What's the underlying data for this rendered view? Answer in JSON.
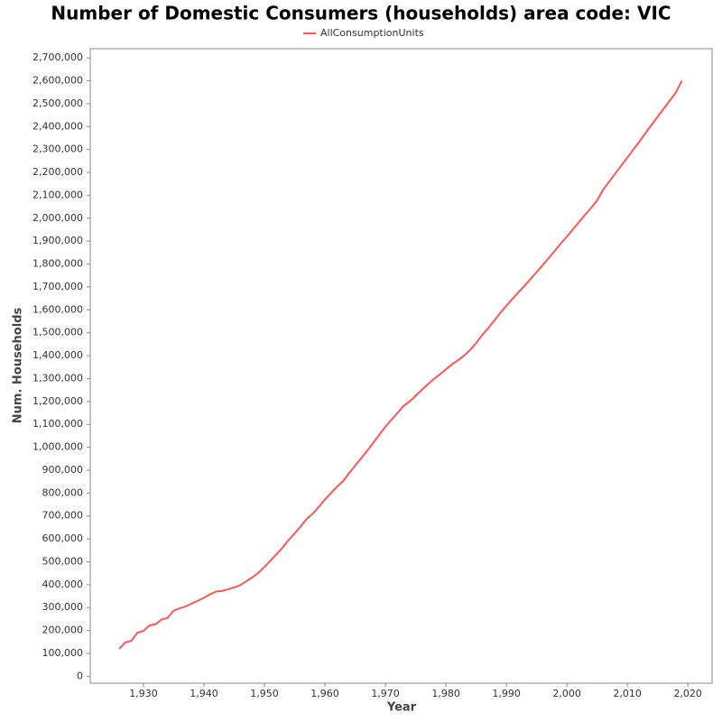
{
  "chart_data": {
    "type": "line",
    "title": "Number of Domestic Consumers (households) area code: VIC",
    "x_label": "Year",
    "y_label": "Num. Households",
    "x": [
      1926,
      1927,
      1928,
      1929,
      1930,
      1931,
      1932,
      1933,
      1934,
      1935,
      1936,
      1937,
      1938,
      1939,
      1940,
      1941,
      1942,
      1943,
      1944,
      1945,
      1946,
      1947,
      1948,
      1949,
      1950,
      1951,
      1952,
      1953,
      1954,
      1955,
      1956,
      1957,
      1958,
      1959,
      1960,
      1961,
      1962,
      1963,
      1964,
      1965,
      1966,
      1967,
      1968,
      1969,
      1970,
      1971,
      1972,
      1973,
      1974,
      1975,
      1976,
      1977,
      1978,
      1979,
      1980,
      1981,
      1982,
      1983,
      1984,
      1985,
      1986,
      1987,
      1988,
      1989,
      1990,
      1991,
      1992,
      1993,
      1994,
      1995,
      1996,
      1997,
      1998,
      1999,
      2000,
      2001,
      2002,
      2003,
      2004,
      2005,
      2006,
      2007,
      2008,
      2009,
      2010,
      2011,
      2012,
      2013,
      2014,
      2015,
      2016,
      2017,
      2018,
      2019
    ],
    "series": [
      {
        "name": "AllConsumptionUnits",
        "color": "#ff5555",
        "values": [
          120000,
          148000,
          155000,
          190000,
          198000,
          222000,
          228000,
          248000,
          255000,
          287000,
          297000,
          305000,
          318000,
          330000,
          343000,
          358000,
          370000,
          373000,
          380000,
          388000,
          398000,
          415000,
          432000,
          452000,
          478000,
          505000,
          533000,
          562000,
          595000,
          624000,
          655000,
          688000,
          710000,
          740000,
          772000,
          800000,
          828000,
          852000,
          887000,
          920000,
          952000,
          985000,
          1020000,
          1055000,
          1090000,
          1120000,
          1150000,
          1180000,
          1200000,
          1225000,
          1250000,
          1275000,
          1298000,
          1318000,
          1340000,
          1362000,
          1380000,
          1400000,
          1425000,
          1455000,
          1490000,
          1520000,
          1553000,
          1587000,
          1618000,
          1648000,
          1677000,
          1705000,
          1735000,
          1765000,
          1795000,
          1826000,
          1858000,
          1890000,
          1920000,
          1952000,
          1983000,
          2015000,
          2045000,
          2078000,
          2125000,
          2160000,
          2195000,
          2230000,
          2265000,
          2300000,
          2335000,
          2372000,
          2408000,
          2443000,
          2478000,
          2513000,
          2548000,
          2600000
        ]
      }
    ],
    "xlim": [
      1921.2,
      2024
    ],
    "xticks": [
      {
        "value": 1930,
        "label": "1,930"
      },
      {
        "value": 1940,
        "label": "1,940"
      },
      {
        "value": 1950,
        "label": "1,950"
      },
      {
        "value": 1960,
        "label": "1,960"
      },
      {
        "value": 1970,
        "label": "1,970"
      },
      {
        "value": 1980,
        "label": "1,980"
      },
      {
        "value": 1990,
        "label": "1,990"
      },
      {
        "value": 2000,
        "label": "2,000"
      },
      {
        "value": 2010,
        "label": "2,010"
      },
      {
        "value": 2020,
        "label": "2,020"
      }
    ],
    "ylim": [
      -30000,
      2740000
    ],
    "yticks": [
      0,
      {
        "value": 100000,
        "label": "100,000"
      },
      {
        "value": 200000,
        "label": "200,000"
      },
      {
        "value": 300000,
        "label": "300,000"
      },
      {
        "value": 400000,
        "label": "400,000"
      },
      {
        "value": 500000,
        "label": "500,000"
      },
      {
        "value": 600000,
        "label": "600,000"
      },
      {
        "value": 700000,
        "label": "700,000"
      },
      {
        "value": 800000,
        "label": "800,000"
      },
      {
        "value": 900000,
        "label": "900,000"
      },
      {
        "value": 1000000,
        "label": "1,000,000"
      },
      {
        "value": 1100000,
        "label": "1,100,000"
      },
      {
        "value": 1200000,
        "label": "1,200,000"
      },
      {
        "value": 1300000,
        "label": "1,300,000"
      },
      {
        "value": 1400000,
        "label": "1,400,000"
      },
      {
        "value": 1500000,
        "label": "1,500,000"
      },
      {
        "value": 1600000,
        "label": "1,600,000"
      },
      {
        "value": 1700000,
        "label": "1,700,000"
      },
      {
        "value": 1800000,
        "label": "1,800,000"
      },
      {
        "value": 1900000,
        "label": "1,900,000"
      },
      {
        "value": 2000000,
        "label": "2,000,000"
      },
      {
        "value": 2100000,
        "label": "2,100,000"
      },
      {
        "value": 2200000,
        "label": "2,200,000"
      },
      {
        "value": 2300000,
        "label": "2,300,000"
      },
      {
        "value": 2400000,
        "label": "2,400,000"
      },
      {
        "value": 2500000,
        "label": "2,500,000"
      },
      {
        "value": 2600000,
        "label": "2,600,000"
      },
      {
        "value": 2700000,
        "label": "2,700,000"
      }
    ],
    "grid": false,
    "legend": "top"
  }
}
